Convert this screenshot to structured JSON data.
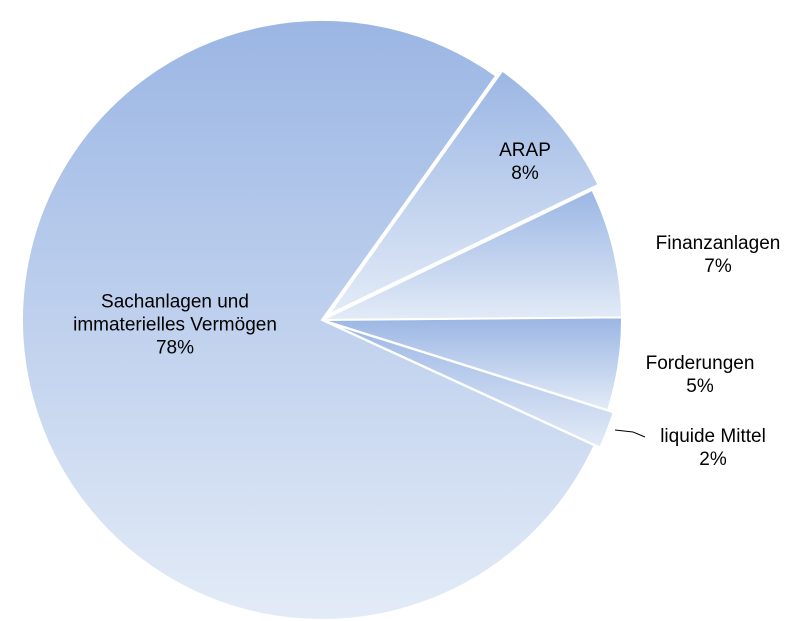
{
  "chart_data": {
    "type": "pie",
    "categories": [
      "ARAP",
      "Finanzanlagen",
      "Forderungen",
      "liquide Mittel",
      "Sachanlagen und immaterielles Vermögen"
    ],
    "values": [
      8,
      7,
      5,
      2,
      78
    ],
    "value_labels": [
      "8%",
      "7%",
      "5%",
      "2%",
      "78%"
    ],
    "color": "#9bb6e4"
  }
}
